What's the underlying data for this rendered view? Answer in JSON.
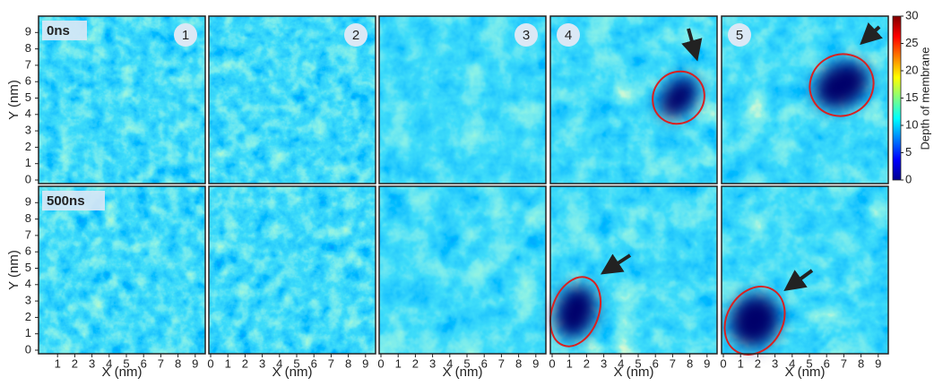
{
  "rows": [
    {
      "label": "0ns"
    },
    {
      "label": "500ns"
    }
  ],
  "panels": [
    "1",
    "2",
    "3",
    "4",
    "5"
  ],
  "x_axis": {
    "label": "X (nm)",
    "ticks": [
      "0",
      "1",
      "2",
      "3",
      "4",
      "5",
      "6",
      "7",
      "8",
      "9"
    ]
  },
  "y_axis": {
    "label": "Y (nm)",
    "ticks": [
      "0",
      "1",
      "2",
      "3",
      "4",
      "5",
      "6",
      "7",
      "8",
      "9"
    ]
  },
  "colorbar": {
    "label": "Depth of membrane",
    "ticks": [
      "0",
      "5",
      "10",
      "15",
      "20",
      "25",
      "30"
    ]
  }
}
